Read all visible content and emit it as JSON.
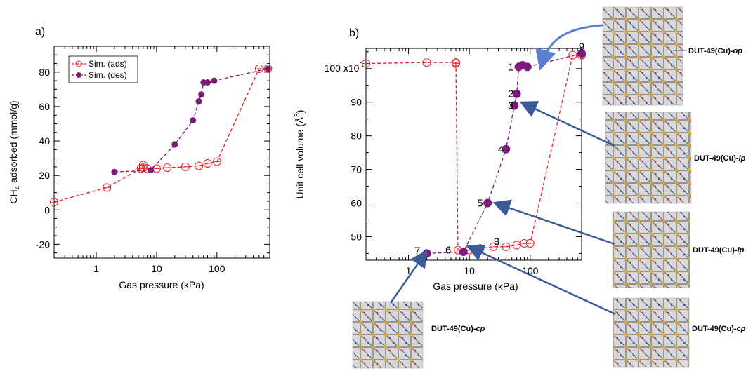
{
  "panel_a": {
    "letter": "a)",
    "xlabel": "Gas pressure (kPa)",
    "ylabel_main": "CH",
    "ylabel_sub": "4",
    "ylabel_rest": " adsorbed (mmol/g)"
  },
  "panel_b": {
    "letter": "b)",
    "xlabel": "Gas pressure (kPa)",
    "ylabel_main": "Unit cell volume (Å",
    "ylabel_sup": "3",
    "ylabel_rest": ")",
    "ytick_top_prefix": "100 x10",
    "ytick_top_exp": "3"
  },
  "structures": [
    {
      "label_main": "DUT-49(Cu)-",
      "label_italic": "op"
    },
    {
      "label_main": "DUT-49(Cu)-",
      "label_italic": "ip"
    },
    {
      "label_main": "DUT-49(Cu)-",
      "label_italic": "ip"
    },
    {
      "label_main": "DUT-49(Cu)-",
      "label_italic": "cp"
    },
    {
      "label_main": "DUT-49(Cu)-",
      "label_italic": "cp"
    }
  ],
  "colors": {
    "ads": "#e8202a",
    "des": "#7b1a78",
    "arrow": "#3a5a9a",
    "arrow_light": "#5a7fd0"
  },
  "chart_data": [
    {
      "type": "scatter",
      "xscale": "log",
      "xlim": [
        0.2,
        750
      ],
      "ylim": [
        -28,
        95
      ],
      "xticks": [
        1,
        10,
        100
      ],
      "xtick_labels": [
        "1",
        "10",
        "100"
      ],
      "yticks": [
        -20,
        0,
        20,
        40,
        60,
        80
      ],
      "ytick_labels": [
        "-20",
        "0",
        "20",
        "40",
        "60",
        "80"
      ],
      "legend_position": "top-left",
      "series": [
        {
          "name": "Sim. (ads)",
          "marker": "open-circle",
          "x": [
            0.2,
            1.5,
            5.5,
            6,
            6,
            7,
            10,
            15,
            30,
            50,
            70,
            100,
            500,
            700
          ],
          "y": [
            4.5,
            13,
            24,
            26,
            24.5,
            24,
            24,
            24.5,
            25,
            25.5,
            27,
            28,
            82,
            82
          ]
        },
        {
          "name": "Sim. (des)",
          "marker": "filled-circle",
          "x": [
            2,
            8,
            20,
            40,
            50,
            55,
            60,
            70,
            90,
            700
          ],
          "y": [
            22,
            23,
            38,
            52,
            63,
            67,
            74,
            74,
            75,
            82
          ]
        }
      ]
    },
    {
      "type": "scatter",
      "xscale": "log",
      "xlim": [
        0.2,
        700
      ],
      "ylim": [
        43,
        106
      ],
      "xticks": [
        1,
        10,
        100
      ],
      "xtick_labels": [
        "1",
        "10",
        "100"
      ],
      "yticks": [
        50,
        60,
        70,
        80,
        90
      ],
      "ytick_labels": [
        "50",
        "60",
        "70",
        "80",
        "90"
      ],
      "series": [
        {
          "marker": "open-circle",
          "x": [
            0.2,
            2,
            6,
            6,
            6.5,
            10,
            15,
            25,
            40,
            60,
            80,
            100,
            500,
            700
          ],
          "y": [
            101.5,
            101.8,
            101.8,
            101.5,
            46,
            46,
            46.5,
            47,
            47,
            47.5,
            48,
            48,
            104,
            104
          ]
        },
        {
          "marker": "filled-circle",
          "x": [
            2,
            8,
            20,
            40,
            55,
            60,
            65,
            75,
            90,
            700
          ],
          "y": [
            45,
            45.5,
            60,
            76,
            89,
            92.5,
            100.5,
            101,
            100.5,
            104.5
          ]
        }
      ],
      "point_labels": [
        {
          "text": "1",
          "x": 48,
          "y": 100.5
        },
        {
          "text": "2",
          "x": 48,
          "y": 92.5
        },
        {
          "text": "3",
          "x": 48,
          "y": 89
        },
        {
          "text": "4",
          "x": 33,
          "y": 76
        },
        {
          "text": "5",
          "x": 15,
          "y": 60
        },
        {
          "text": "6",
          "x": 4.5,
          "y": 46
        },
        {
          "text": "7",
          "x": 1.4,
          "y": 45.8
        },
        {
          "text": "8",
          "x": 28,
          "y": 48.5
        },
        {
          "text": "9",
          "x": 700,
          "y": 106.5
        }
      ]
    }
  ]
}
